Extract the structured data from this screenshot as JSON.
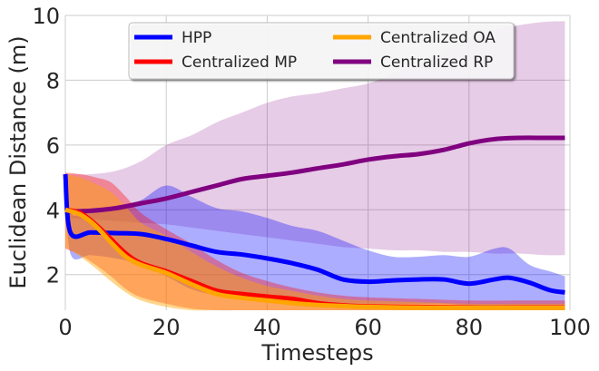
{
  "chart_data": {
    "type": "line",
    "title": "",
    "xlabel": "Timesteps",
    "ylabel": "Euclidean Distance (m)",
    "xlim": [
      0,
      100
    ],
    "ylim": [
      0.9,
      10
    ],
    "xticks": [
      0,
      20,
      40,
      60,
      80,
      100
    ],
    "yticks": [
      2,
      4,
      6,
      8,
      10
    ],
    "grid": true,
    "legend_position": "top-center",
    "series": [
      {
        "name": "HPP",
        "color": "#0000ff",
        "x": [
          0,
          1,
          5,
          10,
          15,
          20,
          25,
          30,
          35,
          40,
          45,
          50,
          55,
          60,
          65,
          70,
          75,
          80,
          85,
          88,
          92,
          96,
          99
        ],
        "y": [
          5.1,
          3.3,
          3.3,
          3.28,
          3.25,
          3.1,
          2.9,
          2.7,
          2.62,
          2.5,
          2.35,
          2.15,
          1.85,
          1.78,
          1.82,
          1.85,
          1.85,
          1.72,
          1.85,
          1.9,
          1.75,
          1.52,
          1.45
        ],
        "lower": [
          5.0,
          2.65,
          2.6,
          2.5,
          2.3,
          1.95,
          1.55,
          1.35,
          1.25,
          1.2,
          1.15,
          1.15,
          1.1,
          1.1,
          1.1,
          1.1,
          1.1,
          1.05,
          1.05,
          1.05,
          1.05,
          1.05,
          1.05
        ],
        "upper": [
          5.2,
          3.9,
          3.95,
          4.05,
          4.3,
          4.75,
          4.4,
          4.05,
          3.95,
          3.75,
          3.5,
          3.35,
          3.05,
          2.75,
          2.55,
          2.55,
          2.6,
          2.55,
          2.8,
          2.8,
          2.3,
          2.1,
          1.95
        ]
      },
      {
        "name": "Centralized MP",
        "color": "#ff0000",
        "x": [
          0,
          3,
          6,
          9,
          12,
          15,
          20,
          25,
          30,
          35,
          40,
          45,
          50,
          55,
          60,
          70,
          80,
          90,
          99
        ],
        "y": [
          4.0,
          3.9,
          3.55,
          3.1,
          2.65,
          2.35,
          2.1,
          1.8,
          1.5,
          1.4,
          1.32,
          1.25,
          1.12,
          1.05,
          1.02,
          1.0,
          0.98,
          0.98,
          0.98
        ],
        "lower": [
          2.8,
          2.6,
          2.3,
          1.95,
          1.55,
          1.3,
          1.1,
          0.95,
          0.9,
          0.9,
          0.9,
          0.9,
          0.9,
          0.9,
          0.9,
          0.9,
          0.9,
          0.9,
          0.9
        ],
        "upper": [
          5.15,
          5.1,
          5.0,
          4.85,
          4.4,
          3.9,
          3.4,
          2.95,
          2.45,
          2.05,
          1.8,
          1.6,
          1.45,
          1.35,
          1.3,
          1.25,
          1.2,
          1.2,
          1.2
        ]
      },
      {
        "name": "Centralized OA",
        "color": "#ffa500",
        "x": [
          0,
          3,
          6,
          9,
          12,
          15,
          20,
          25,
          30,
          35,
          40,
          45,
          50,
          55,
          60,
          70,
          80,
          90,
          99
        ],
        "y": [
          4.0,
          3.85,
          3.5,
          3.0,
          2.55,
          2.3,
          2.05,
          1.7,
          1.4,
          1.28,
          1.2,
          1.12,
          1.06,
          1.03,
          1.0,
          0.98,
          0.97,
          0.97,
          0.97
        ],
        "lower": [
          2.85,
          2.55,
          2.2,
          1.8,
          1.45,
          1.2,
          1.0,
          0.9,
          0.9,
          0.9,
          0.9,
          0.9,
          0.9,
          0.9,
          0.9,
          0.9,
          0.9,
          0.9,
          0.9
        ],
        "upper": [
          5.1,
          5.0,
          4.8,
          4.55,
          4.1,
          3.6,
          3.2,
          2.7,
          2.25,
          1.9,
          1.65,
          1.5,
          1.35,
          1.25,
          1.2,
          1.15,
          1.1,
          1.1,
          1.1
        ]
      },
      {
        "name": "Centralized RP",
        "color": "#800080",
        "x": [
          0,
          5,
          10,
          15,
          20,
          25,
          30,
          35,
          40,
          45,
          50,
          55,
          60,
          65,
          70,
          75,
          80,
          85,
          90,
          95,
          99
        ],
        "y": [
          3.95,
          3.97,
          4.05,
          4.2,
          4.35,
          4.55,
          4.75,
          4.95,
          5.05,
          5.15,
          5.28,
          5.4,
          5.55,
          5.65,
          5.72,
          5.85,
          6.05,
          6.18,
          6.22,
          6.22,
          6.22
        ],
        "lower": [
          3.75,
          3.7,
          3.65,
          3.6,
          3.55,
          3.45,
          3.35,
          3.25,
          3.15,
          3.05,
          2.95,
          2.85,
          2.8,
          2.75,
          2.75,
          2.7,
          2.7,
          2.65,
          2.65,
          2.6,
          2.6
        ],
        "upper": [
          5.1,
          5.1,
          5.2,
          5.5,
          6.0,
          6.3,
          6.7,
          7.0,
          7.3,
          7.5,
          7.6,
          7.75,
          7.9,
          8.2,
          8.5,
          8.9,
          9.3,
          9.55,
          9.7,
          9.8,
          9.82
        ]
      }
    ]
  }
}
